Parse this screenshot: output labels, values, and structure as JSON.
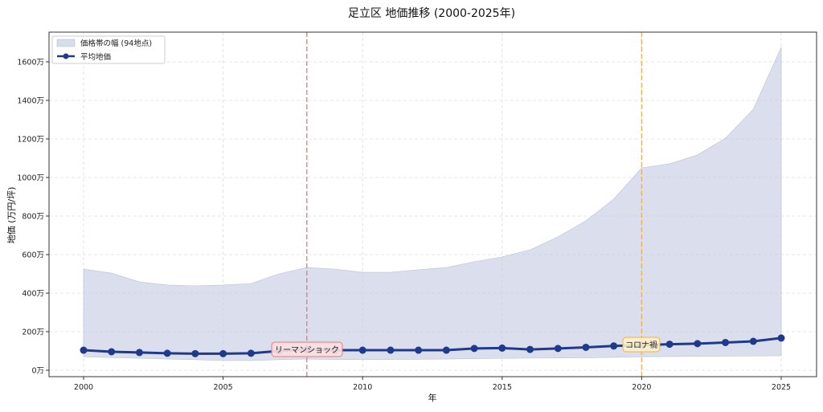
{
  "chart_data": {
    "type": "line",
    "title": "足立区 地価推移 (2000-2025年)",
    "xlabel": "年",
    "ylabel": "地価 (万円/坪)",
    "xlim": [
      1998.75,
      2026.25
    ],
    "ylim": [
      -30,
      1750
    ],
    "x_ticks": [
      2000,
      2005,
      2010,
      2015,
      2020,
      2025
    ],
    "y_ticks": [
      0,
      200,
      400,
      600,
      800,
      1000,
      1200,
      1400,
      1600
    ],
    "y_tick_labels": [
      "0万",
      "200万",
      "400万",
      "600万",
      "800万",
      "1000万",
      "1200万",
      "1400万",
      "1600万"
    ],
    "grid": true,
    "legend_position": "upper left",
    "legend": [
      {
        "label": "価格帯の幅 (94地点)",
        "kind": "band",
        "color": "#c8cee4"
      },
      {
        "label": "平均地価",
        "kind": "line-marker",
        "color": "#1f3a8a"
      }
    ],
    "x": [
      2000,
      2001,
      2002,
      2003,
      2004,
      2005,
      2006,
      2007,
      2008,
      2009,
      2010,
      2011,
      2012,
      2013,
      2014,
      2015,
      2016,
      2017,
      2018,
      2019,
      2020,
      2021,
      2022,
      2023,
      2024,
      2025
    ],
    "series": [
      {
        "name": "平均地価",
        "type": "line",
        "color": "#1f3a8a",
        "values": [
          104,
          96,
          92,
          88,
          86,
          86,
          88,
          100,
          108,
          104,
          104,
          104,
          104,
          104,
          113,
          115,
          108,
          113,
          119,
          126,
          130,
          135,
          138,
          144,
          150,
          167
        ]
      },
      {
        "name": "価格帯の幅 (94地点) 上限",
        "type": "area-upper",
        "color": "#c8cee4",
        "values": [
          525,
          504,
          458,
          442,
          438,
          442,
          450,
          500,
          533,
          525,
          508,
          508,
          521,
          533,
          563,
          588,
          625,
          692,
          775,
          888,
          1050,
          1071,
          1117,
          1204,
          1354,
          1675
        ]
      },
      {
        "name": "価格帯の幅 (94地点) 下限",
        "type": "area-lower",
        "color": "#c8cee4",
        "values": [
          70,
          66,
          62,
          58,
          55,
          50,
          50,
          55,
          58,
          56,
          55,
          56,
          57,
          58,
          60,
          62,
          63,
          64,
          65,
          67,
          70,
          71,
          72,
          73,
          74,
          75
        ]
      }
    ],
    "annotations": [
      {
        "label": "リーマンショック",
        "x": 2008,
        "line_color": "#e87878",
        "box_fill": "#fbe0e0",
        "box_edge": "#e87878"
      },
      {
        "label": "コロナ禍",
        "x": 2020,
        "line_color": "#f0b050",
        "box_fill": "#fdf0c8",
        "box_edge": "#f0b050"
      }
    ]
  }
}
